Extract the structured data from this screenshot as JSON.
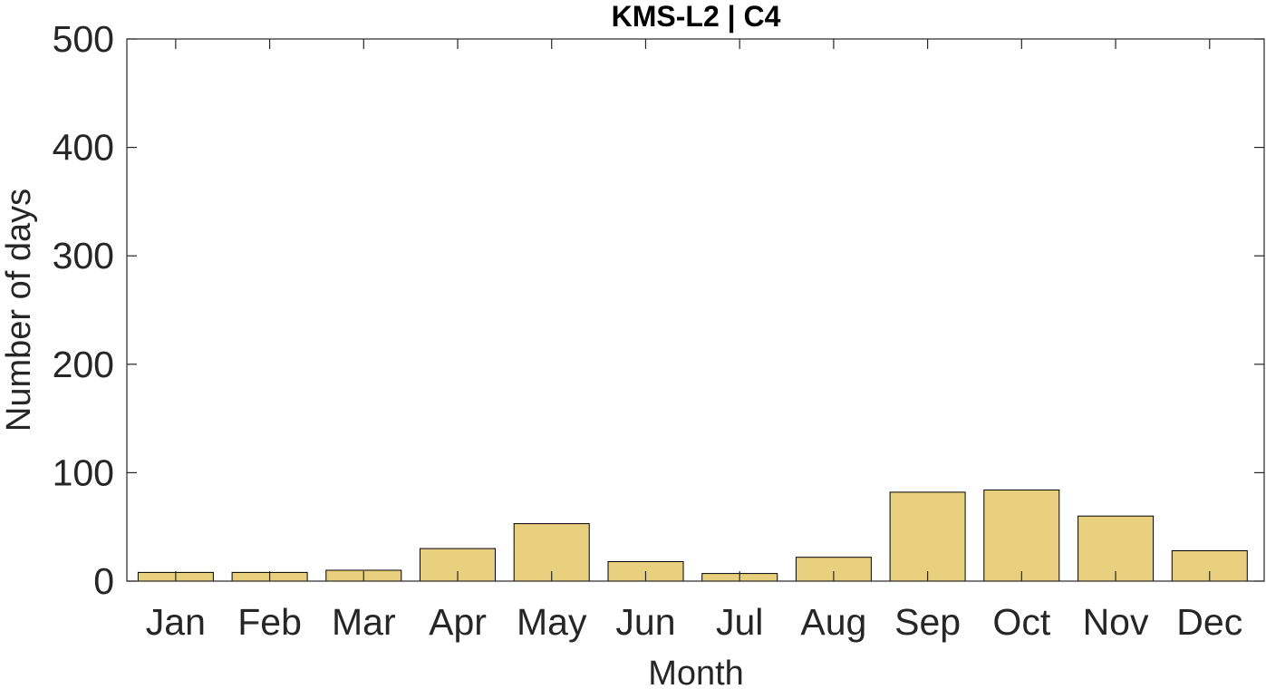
{
  "chart_data": {
    "type": "bar",
    "title": "KMS-L2 | C4",
    "xlabel": "Month",
    "ylabel": "Number of days",
    "categories": [
      "Jan",
      "Feb",
      "Mar",
      "Apr",
      "May",
      "Jun",
      "Jul",
      "Aug",
      "Sep",
      "Oct",
      "Nov",
      "Dec"
    ],
    "values": [
      8,
      8,
      10,
      30,
      53,
      18,
      7,
      22,
      82,
      84,
      60,
      28
    ],
    "ylim": [
      0,
      500
    ],
    "yticks": [
      0,
      100,
      200,
      300,
      400,
      500
    ],
    "grid": false,
    "bar_color": "#e9d07f",
    "bar_edge_color": "#000000",
    "axis_color": "#262626"
  }
}
